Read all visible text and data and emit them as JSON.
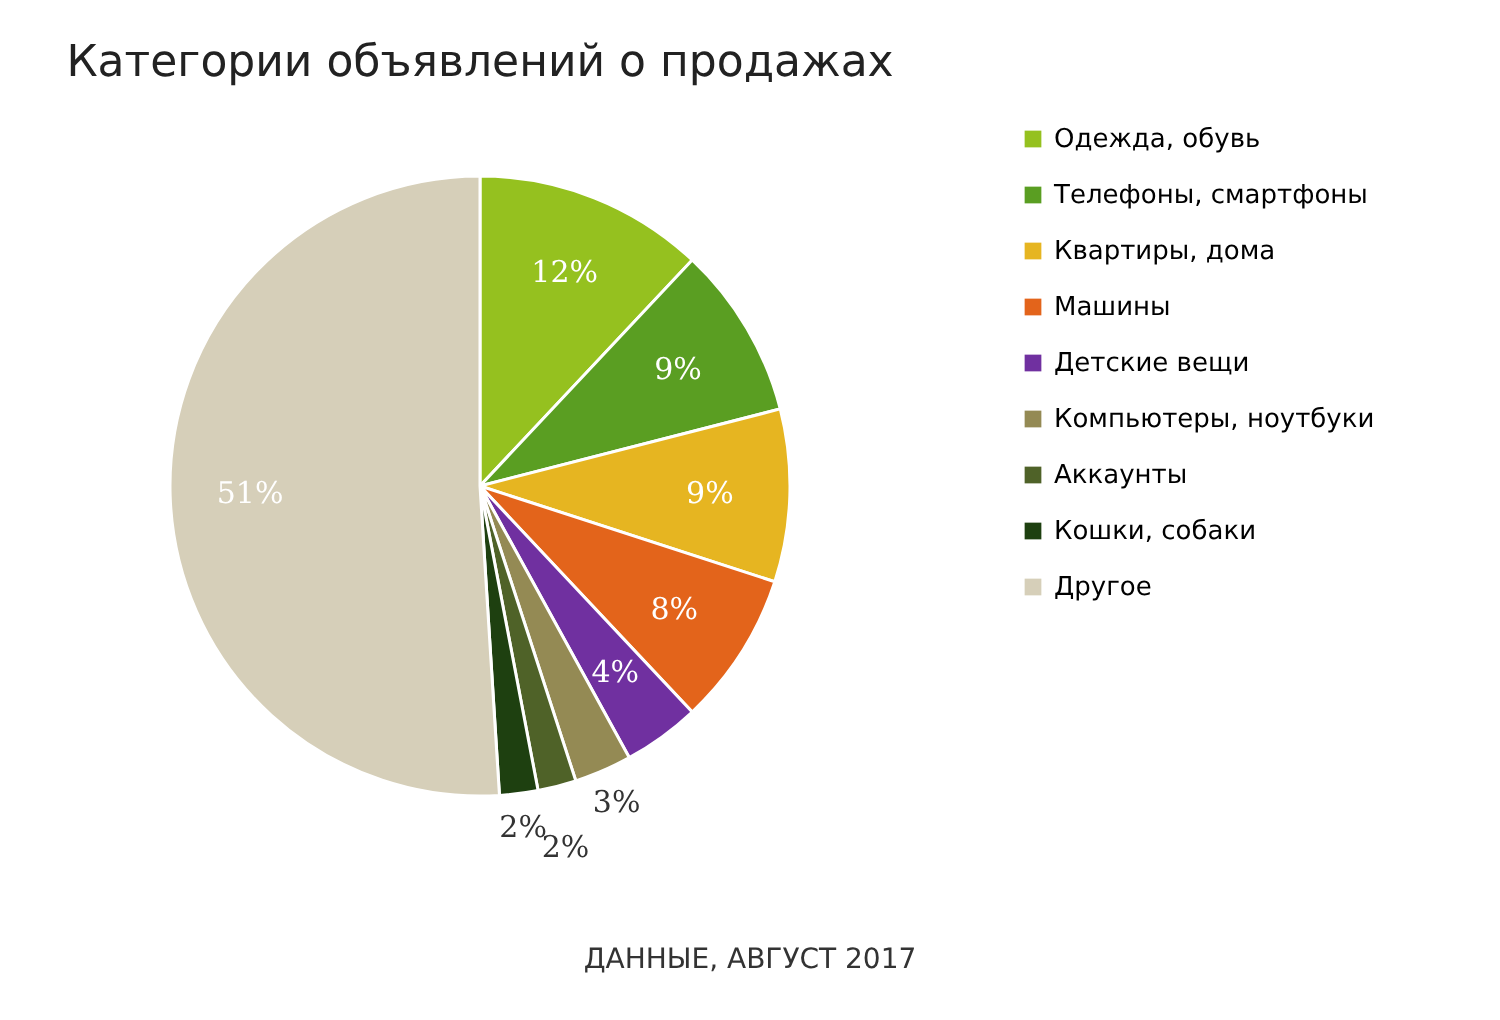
{
  "chart_data": {
    "type": "pie",
    "title": "Категории объявлений о продажах",
    "categories": [
      "Одежда, обувь",
      "Телефоны, смартфоны",
      "Квартиры, дома",
      "Машины",
      "Детские вещи",
      "Компьютеры, ноутбуки",
      "Аккаунты",
      "Кошки, собаки",
      "Другое"
    ],
    "values": [
      12,
      9,
      9,
      8,
      4,
      3,
      2,
      2,
      51
    ],
    "value_labels": [
      "12%",
      "9%",
      "9%",
      "8%",
      "4%",
      "3%",
      "2%",
      "2%",
      "51%"
    ],
    "colors": [
      "#95c11f",
      "#5a9e22",
      "#e6b521",
      "#e3641b",
      "#7030a0",
      "#948a54",
      "#4f6228",
      "#1e4010",
      "#d6cfb9"
    ],
    "legend": "right",
    "annotations": [
      "ДАННЫЕ, АВГУСТ 2017"
    ]
  }
}
